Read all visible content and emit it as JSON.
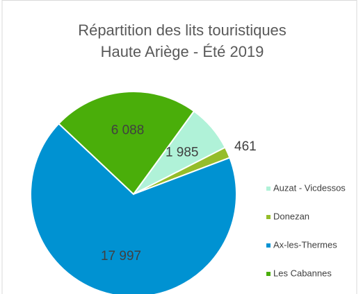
{
  "chart_data": {
    "type": "pie",
    "title": [
      "Répartition des lits touristiques",
      "Haute Ariège - Été 2019"
    ],
    "categories": [
      "Auzat - Vicdessos",
      "Donezan",
      "Ax-les-Thermes",
      "Les Cabannes"
    ],
    "values": [
      1985,
      461,
      17997,
      6088
    ],
    "value_labels": [
      "1 985",
      "461",
      "17 997",
      "6 088"
    ],
    "colors": [
      "#b0f2d8",
      "#95bd2a",
      "#0092d2",
      "#4aae0a"
    ],
    "legend": "right"
  }
}
